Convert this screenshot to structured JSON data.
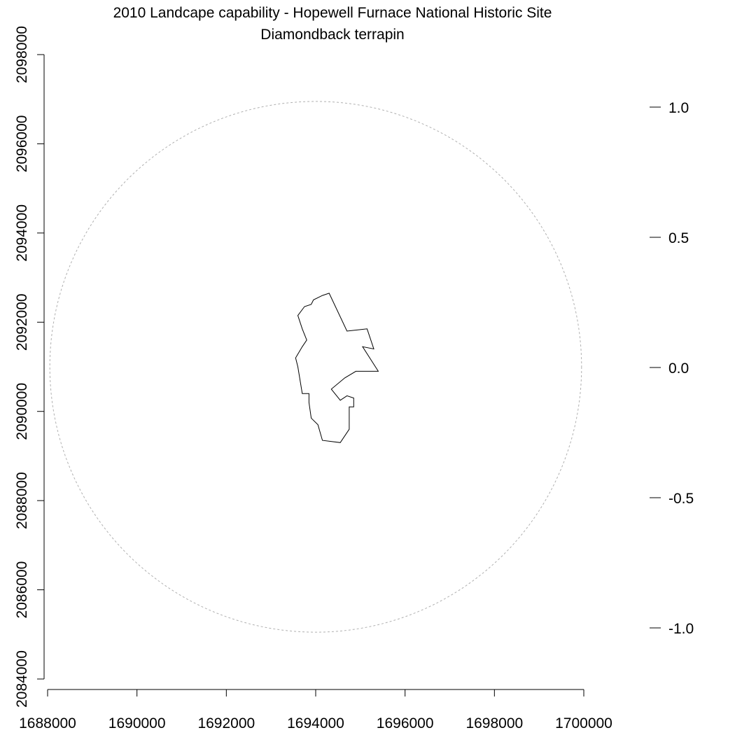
{
  "chart_data": {
    "type": "map",
    "title": "2010 Landcape capability - Hopewell Furnace National Historic Site",
    "subtitle": "Diamondback terrapin",
    "xlabel": "",
    "ylabel": "",
    "xlim": [
      1688000,
      1700000
    ],
    "ylim": [
      2084000,
      2098000
    ],
    "x_ticks": [
      "1688000",
      "1690000",
      "1692000",
      "1694000",
      "1696000",
      "1698000",
      "1700000"
    ],
    "y_ticks": [
      "2084000",
      "2086000",
      "2088000",
      "2090000",
      "2092000",
      "2094000",
      "2096000",
      "2098000"
    ],
    "legend_ticks": [
      "1.0",
      "0.5",
      "0.0",
      "-0.5",
      "-1.0"
    ],
    "legend_range": [
      -1.0,
      1.0
    ],
    "grid": false,
    "buffer_circle": {
      "style": "dashed",
      "color": "#b0b0b0",
      "center": [
        1694000,
        2091000
      ],
      "radius": 5950
    },
    "park_boundary": {
      "color": "#000000",
      "points": [
        [
          1693600,
          2092150
        ],
        [
          1693750,
          2092350
        ],
        [
          1693900,
          2092400
        ],
        [
          1693950,
          2092500
        ],
        [
          1694150,
          2092600
        ],
        [
          1694300,
          2092650
        ],
        [
          1694700,
          2091800
        ],
        [
          1695150,
          2091850
        ],
        [
          1695300,
          2091400
        ],
        [
          1695050,
          2091450
        ],
        [
          1695400,
          2090900
        ],
        [
          1694900,
          2090900
        ],
        [
          1694650,
          2090750
        ],
        [
          1694350,
          2090500
        ],
        [
          1694550,
          2090250
        ],
        [
          1694700,
          2090350
        ],
        [
          1694850,
          2090300
        ],
        [
          1694850,
          2090100
        ],
        [
          1694750,
          2090100
        ],
        [
          1694750,
          2089700
        ],
        [
          1694750,
          2089600
        ],
        [
          1694550,
          2089300
        ],
        [
          1694150,
          2089350
        ],
        [
          1694050,
          2089700
        ],
        [
          1693900,
          2089850
        ],
        [
          1693850,
          2090200
        ],
        [
          1693850,
          2090400
        ],
        [
          1693700,
          2090400
        ],
        [
          1693600,
          2091000
        ],
        [
          1693550,
          2091200
        ],
        [
          1693700,
          2091450
        ],
        [
          1693800,
          2091600
        ],
        [
          1693700,
          2091850
        ],
        [
          1693600,
          2092150
        ]
      ]
    }
  }
}
